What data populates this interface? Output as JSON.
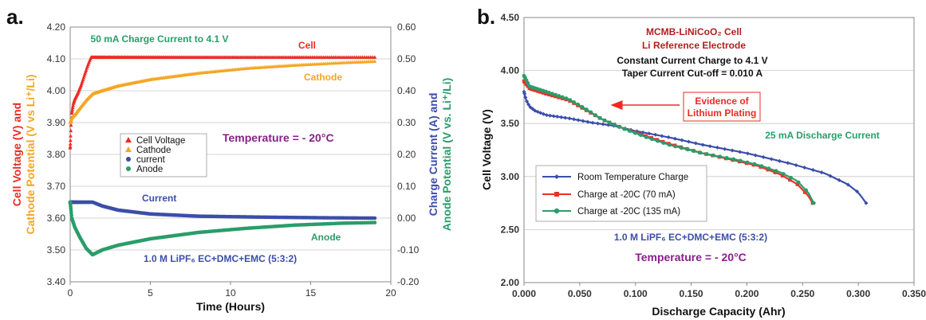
{
  "colors": {
    "cell": "#ee2a24",
    "cathode": "#f5a623",
    "current": "#3b4ea8",
    "anode": "#2a9d6a",
    "room": "#3b4ea8",
    "c70": "#e63228",
    "c135": "#2a9d6a",
    "darkred": "#b21f1f",
    "purple": "#8a1f8a",
    "grid": "#c8c8c8"
  },
  "chart_data": [
    {
      "panel": "a.",
      "type": "scatter",
      "xlabel": "Time (Hours)",
      "ylabel_left_lines": [
        "Cell Voltage (V) and",
        "Cathode Potential (V vs Li⁺/Li)"
      ],
      "ylabel_right_lines": [
        "Charge Current (A) and",
        "Anode Potential (V vs. Li⁺/Li)"
      ],
      "xlim": [
        0,
        20
      ],
      "ylim_left": [
        3.4,
        4.2
      ],
      "ylim_right": [
        -0.2,
        0.6
      ],
      "x_ticks": [
        "0",
        "5",
        "10",
        "15",
        "20"
      ],
      "y_ticks_left": [
        "3.40",
        "3.50",
        "3.60",
        "3.70",
        "3.80",
        "3.90",
        "4.00",
        "4.10",
        "4.20"
      ],
      "y_ticks_right": [
        "-0.20",
        "-0.10",
        "0.00",
        "0.10",
        "0.20",
        "0.30",
        "0.40",
        "0.50",
        "0.60"
      ],
      "legend": [
        "Cell Voltage",
        "Cathode",
        "current",
        "Anode"
      ],
      "annotations": {
        "charge": "50 mA Charge Current to 4.1 V",
        "cell": "Cell",
        "cathode": "Cathode",
        "temperature": "Temperature = - 20°C",
        "current": "Current",
        "anode": "Anode",
        "electrolyte": "1.0 M LiPF₆ EC+DMC+EMC (5:3:2)"
      },
      "series": [
        {
          "name": "Cell Voltage",
          "axis": "left",
          "x": [
            0,
            0.05,
            0.1,
            0.2,
            0.3,
            0.5,
            0.7,
            0.9,
            1.1,
            1.3,
            1.4,
            5,
            10,
            15,
            19
          ],
          "y": [
            3.82,
            3.89,
            3.93,
            3.96,
            3.975,
            3.995,
            4.02,
            4.05,
            4.08,
            4.105,
            4.105,
            4.105,
            4.105,
            4.105,
            4.105
          ]
        },
        {
          "name": "Cathode",
          "axis": "left",
          "x": [
            0,
            0.1,
            0.3,
            0.6,
            1.0,
            1.4,
            2,
            3,
            5,
            8,
            11,
            14,
            17,
            19
          ],
          "y": [
            3.9,
            3.915,
            3.925,
            3.945,
            3.97,
            3.99,
            4.0,
            4.015,
            4.035,
            4.055,
            4.07,
            4.08,
            4.088,
            4.092
          ]
        },
        {
          "name": "current",
          "axis": "right",
          "x": [
            0,
            0.5,
            1.0,
            1.4,
            2,
            3,
            5,
            8,
            12,
            16,
            19
          ],
          "y": [
            0.05,
            0.05,
            0.05,
            0.05,
            0.038,
            0.025,
            0.013,
            0.006,
            0.003,
            0.001,
            0.0
          ]
        },
        {
          "name": "Anode",
          "axis": "right",
          "x": [
            0,
            0.1,
            0.3,
            0.6,
            1.0,
            1.4,
            2,
            3,
            5,
            8,
            11,
            14,
            17,
            19
          ],
          "y": [
            0.05,
            0.0,
            -0.03,
            -0.06,
            -0.095,
            -0.115,
            -0.1,
            -0.085,
            -0.065,
            -0.045,
            -0.032,
            -0.022,
            -0.016,
            -0.014
          ]
        }
      ]
    },
    {
      "panel": "b.",
      "type": "scatter",
      "xlabel": "Discharge Capacity (Ahr)",
      "ylabel": "Cell Voltage (V)",
      "xlim": [
        0,
        0.35
      ],
      "ylim": [
        2.0,
        4.5
      ],
      "x_ticks": [
        "0.000",
        "0.050",
        "0.100",
        "0.150",
        "0.200",
        "0.250",
        "0.300",
        "0.350"
      ],
      "y_ticks": [
        "2.00",
        "2.50",
        "3.00",
        "3.50",
        "4.00",
        "4.50"
      ],
      "legend": [
        "Room Temperature Charge",
        "Charge at -20C (70 mA)",
        "Charge at -20C (135 mA)"
      ],
      "annotations": {
        "title1": "MCMB-LiNiCoO₂ Cell",
        "title2": "Li Reference Electrode",
        "cc1": "Constant Current Charge to 4.1 V",
        "cc2": "Taper Current Cut-off = 0.010 A",
        "evidence1": "Evidence of",
        "evidence2": "Lithium Plating",
        "discharge": "25 mA Discharge Current",
        "electrolyte": "1.0 M LiPF₆ EC+DMC+EMC (5:3:2)",
        "temperature": "Temperature = - 20°C"
      },
      "series": [
        {
          "name": "Room Temperature Charge",
          "x": [
            0,
            0.002,
            0.005,
            0.01,
            0.02,
            0.04,
            0.06,
            0.08,
            0.1,
            0.13,
            0.16,
            0.2,
            0.24,
            0.27,
            0.29,
            0.3,
            0.307
          ],
          "y": [
            3.8,
            3.72,
            3.66,
            3.62,
            3.58,
            3.55,
            3.51,
            3.48,
            3.43,
            3.37,
            3.3,
            3.22,
            3.12,
            3.03,
            2.93,
            2.85,
            2.75
          ]
        },
        {
          "name": "Charge at -20C (70 mA)",
          "x": [
            0,
            0.005,
            0.02,
            0.04,
            0.055,
            0.07,
            0.09,
            0.11,
            0.13,
            0.16,
            0.19,
            0.21,
            0.23,
            0.245,
            0.255,
            0.259
          ],
          "y": [
            3.9,
            3.83,
            3.78,
            3.72,
            3.63,
            3.54,
            3.45,
            3.38,
            3.31,
            3.22,
            3.15,
            3.1,
            3.02,
            2.93,
            2.82,
            2.75
          ]
        },
        {
          "name": "Charge at -20C (135 mA)",
          "x": [
            0,
            0.005,
            0.02,
            0.04,
            0.055,
            0.07,
            0.09,
            0.11,
            0.13,
            0.16,
            0.19,
            0.21,
            0.23,
            0.245,
            0.255,
            0.26
          ],
          "y": [
            3.95,
            3.85,
            3.8,
            3.73,
            3.64,
            3.54,
            3.45,
            3.37,
            3.3,
            3.22,
            3.16,
            3.11,
            3.04,
            2.96,
            2.85,
            2.75
          ]
        }
      ]
    }
  ]
}
